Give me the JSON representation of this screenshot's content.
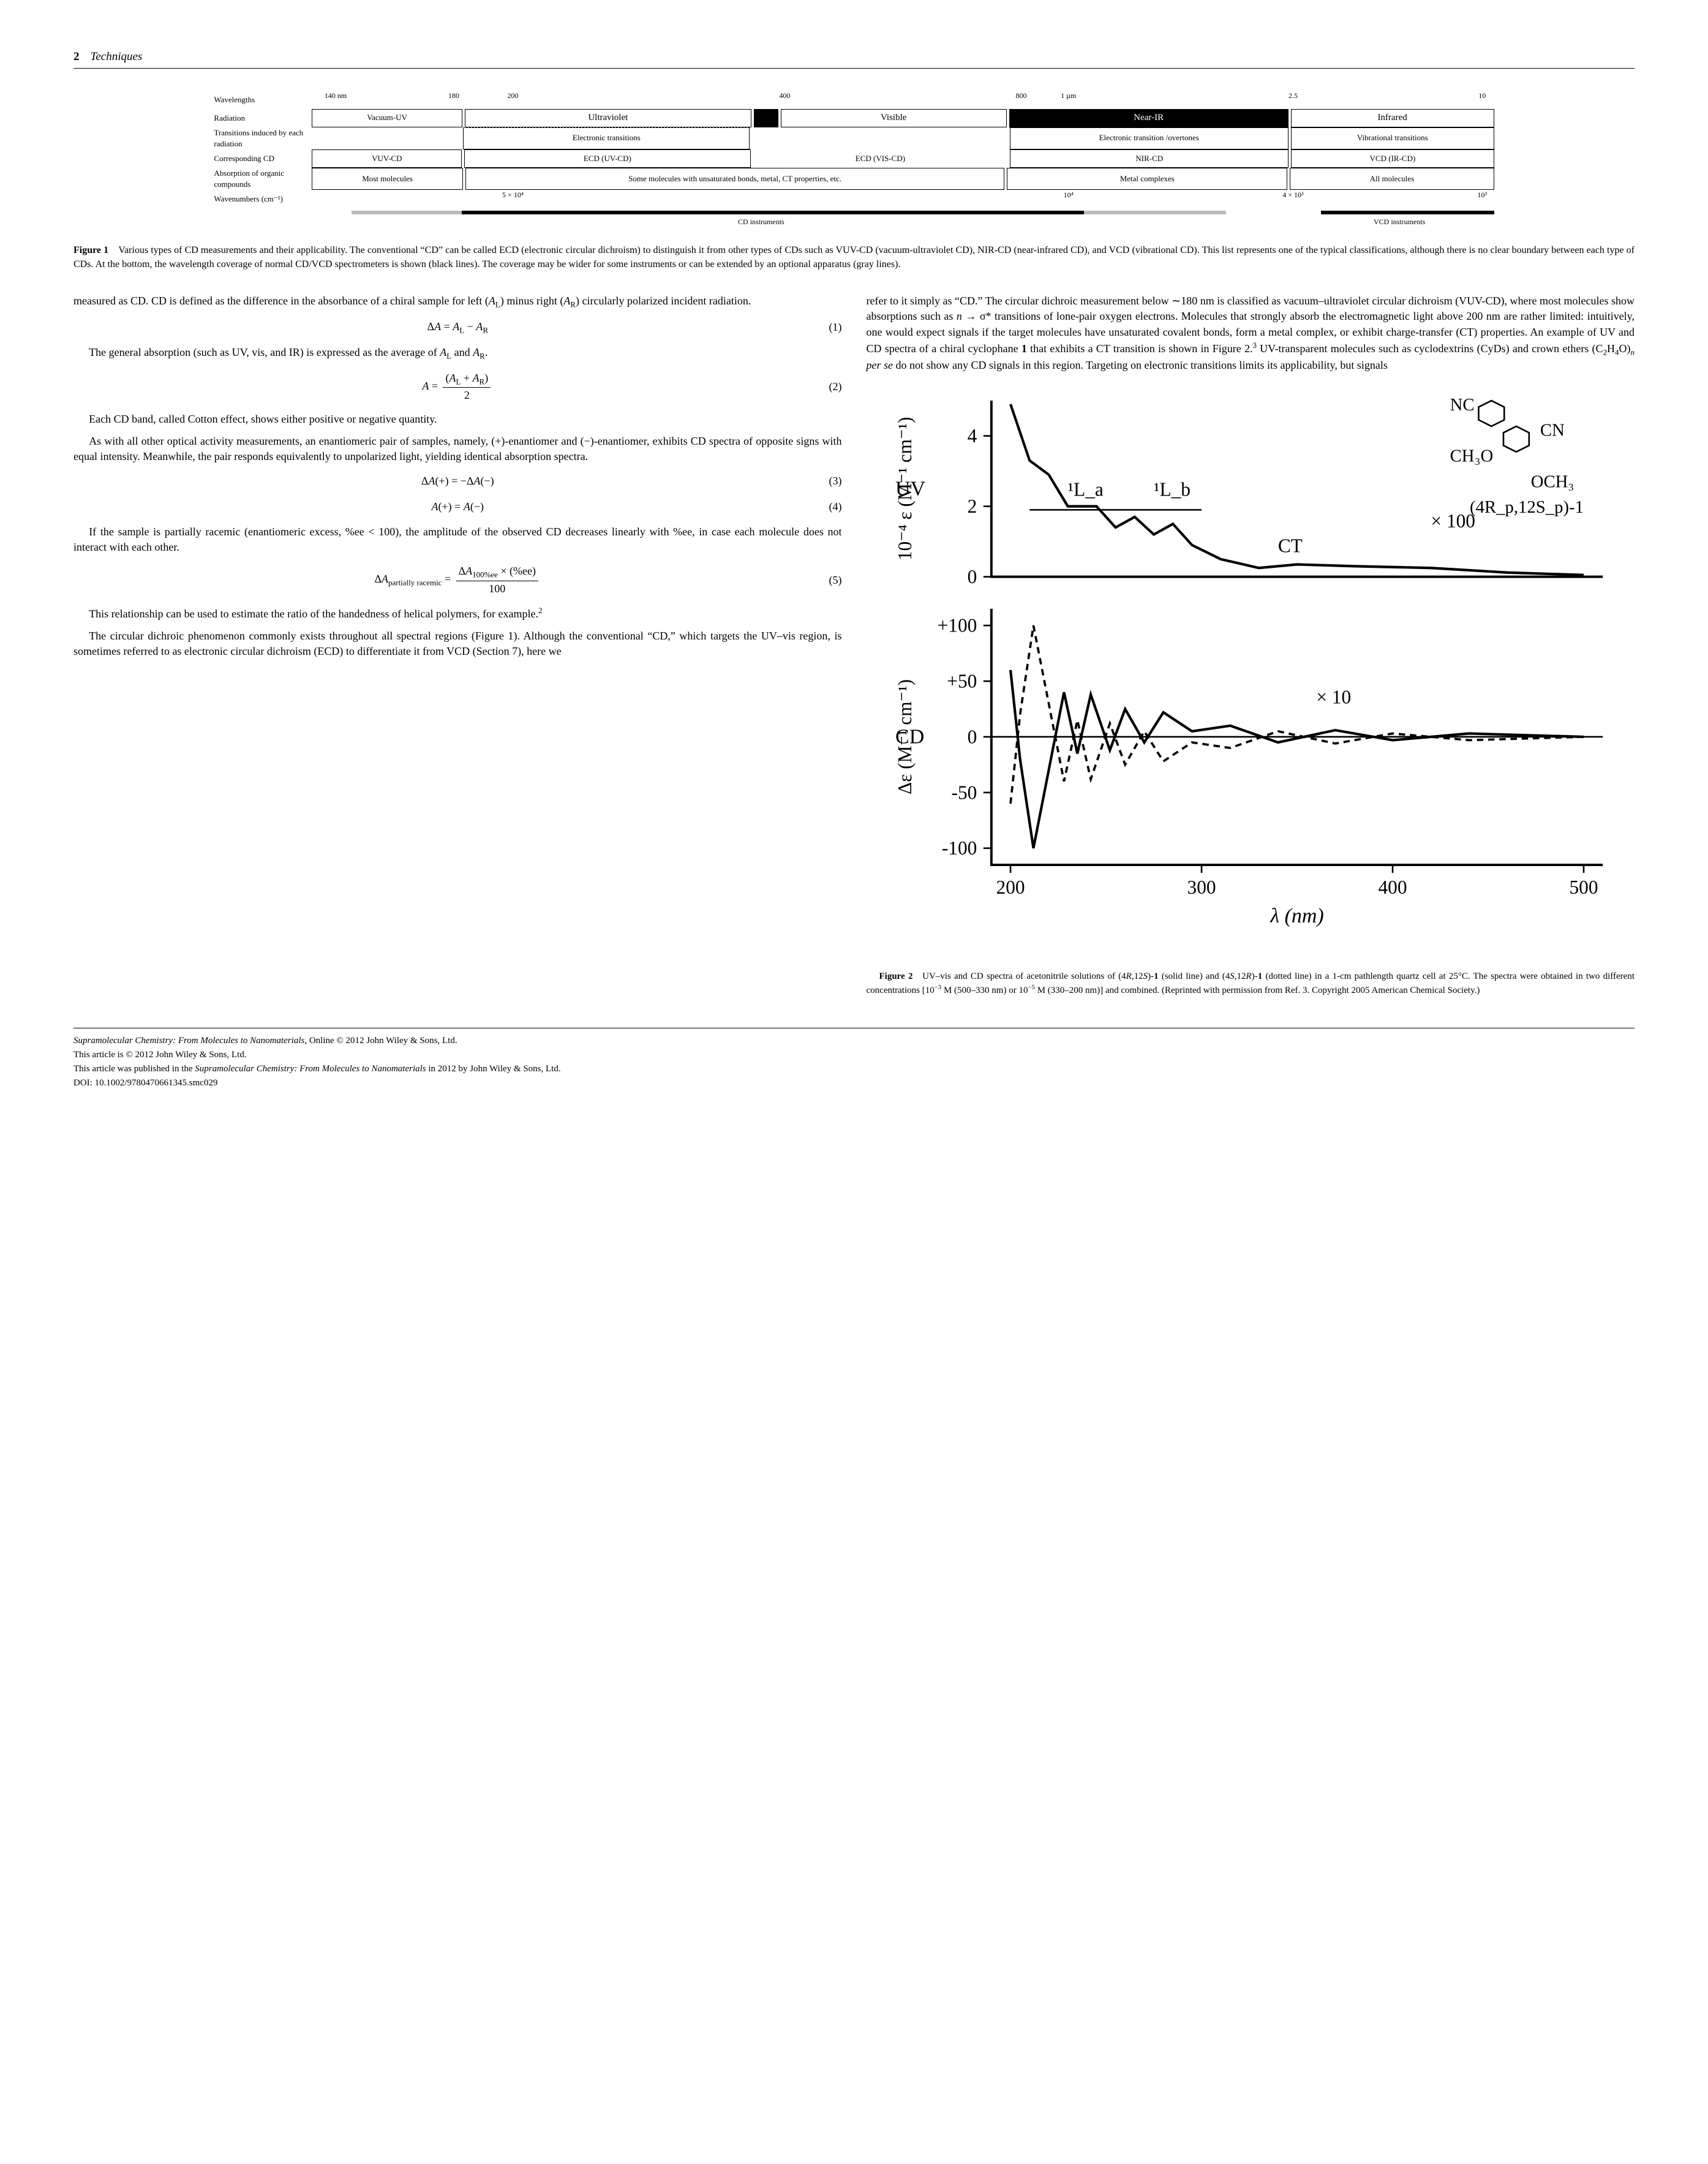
{
  "header": {
    "page_number": "2",
    "section_title": "Techniques"
  },
  "figure1": {
    "row_labels": {
      "wavelengths": "Wavelengths",
      "radiation": "Radiation",
      "transitions": "Transitions induced by each radiation",
      "corresponding": "Corresponding CD",
      "absorption": "Absorption of organic compounds",
      "wavenumbers": "Wavenumbers (cm⁻¹)"
    },
    "wavelength_ticks": [
      "140 nm",
      "180",
      "200",
      "400",
      "800",
      "1 µm",
      "2.5",
      "10"
    ],
    "radiation": [
      "Vacuum-UV",
      "Ultraviolet",
      "Visible",
      "Near-IR",
      "Infrared"
    ],
    "transitions": [
      "",
      "Electronic transitions",
      "",
      "Electronic transition /overtones",
      "Vibrational transitions"
    ],
    "corresponding": [
      "VUV-CD",
      "ECD (UV-CD)",
      "ECD (VIS-CD)",
      "NIR-CD",
      "VCD (IR-CD)"
    ],
    "absorption": [
      "Most molecules",
      "Some molecules with unsaturated bonds, metal, CT properties, etc.",
      "Metal complexes",
      "All molecules"
    ],
    "wavenumber_ticks": [
      "5 × 10⁴",
      "10⁴",
      "4 × 10³",
      "10³"
    ],
    "instruments": {
      "cd": "CD instruments",
      "vcd": "VCD instruments"
    },
    "colors": {
      "border": "#000000",
      "dark_bg": "#000000",
      "dark_fg": "#ffffff",
      "gray_bar": "#bbbbbb"
    },
    "column_flex": {
      "vuv": 0.95,
      "uv": 1.85,
      "vis": 1.65,
      "nir": 1.8,
      "ir": 1.3
    }
  },
  "figure1_caption": {
    "label": "Figure 1",
    "text": "Various types of CD measurements and their applicability. The conventional “CD” can be called ECD (electronic circular dichroism) to distinguish it from other types of CDs such as VUV-CD (vacuum-ultraviolet CD), NIR-CD (near-infrared CD), and VCD (vibrational CD). This list represents one of the typical classifications, although there is no clear boundary between each type of CDs. At the bottom, the wavelength coverage of normal CD/VCD spectrometers is shown (black lines). The coverage may be wider for some instruments or can be extended by an optional apparatus (gray lines)."
  },
  "body": {
    "left": {
      "p1": "measured as CD. CD is defined as the difference in the absorbance of a chiral sample for left (A_L) minus right (A_R) circularly polarized incident radiation.",
      "eq1": {
        "math": "ΔA = A_L − A_R",
        "num": "(1)"
      },
      "p2": "The general absorption (such as UV, vis, and IR) is expressed as the average of A_L and A_R.",
      "eq2": {
        "lhs": "A =",
        "num_top": "(A_L + A_R)",
        "den": "2",
        "num": "(2)"
      },
      "p3": "Each CD band, called Cotton effect, shows either positive or negative quantity.",
      "p4": "As with all other optical activity measurements, an enantiomeric pair of samples, namely, (+)-enantiomer and (−)-enantiomer, exhibits CD spectra of opposite signs with equal intensity. Meanwhile, the pair responds equivalently to unpolarized light, yielding identical absorption spectra.",
      "eq3": {
        "math": "ΔA(+) = −ΔA(−)",
        "num": "(3)"
      },
      "eq4": {
        "math": "A(+) = A(−)",
        "num": "(4)"
      },
      "p5": "If the sample is partially racemic (enantiomeric excess, %ee < 100), the amplitude of the observed CD decreases linearly with %ee, in case each molecule does not interact with each other.",
      "eq5": {
        "lhs": "ΔA_partially racemic =",
        "num_top": "ΔA_100%ee × (%ee)",
        "den": "100",
        "num": "(5)"
      },
      "p6": "This relationship can be used to estimate the ratio of the handedness of helical polymers, for example.²",
      "p7": "The circular dichroic phenomenon commonly exists throughout all spectral regions (Figure 1). Although the conventional “CD,” which targets the UV–vis region, is sometimes referred to as electronic circular dichroism (ECD) to differentiate it from VCD (Section 7), here we"
    },
    "right": {
      "p1": "refer to it simply as “CD.” The circular dichroic measurement below ∼180 nm is classified as vacuum–ultraviolet circular dichroism (VUV-CD), where most molecules show absorptions such as n → σ* transitions of lone-pair oxygen electrons. Molecules that strongly absorb the electromagnetic light above 200 nm are rather limited: intuitively, one would expect signals if the target molecules have unsaturated covalent bonds, form a metal complex, or exhibit charge-transfer (CT) properties. An example of UV and CD spectra of a chiral cyclophane 1 that exhibits a CT transition is shown in Figure 2.³ UV-transparent molecules such as cyclodextrins (CyDs) and crown ethers (C₂H₄O)ₙ per se do not show any CD signals in this region. Targeting on electronic transitions limits its applicability, but signals"
    }
  },
  "figure2": {
    "uv": {
      "ylabel": "10⁻⁴ ε (M⁻¹ cm⁻¹)",
      "yticks": [
        0,
        2,
        4
      ],
      "ylim": [
        0,
        5
      ],
      "annotations": {
        "La": "¹L_a",
        "Lb": "¹L_b",
        "CT": "CT",
        "x100": "× 100"
      },
      "series_solid": [
        [
          200,
          4.9
        ],
        [
          210,
          3.3
        ],
        [
          220,
          2.9
        ],
        [
          230,
          2.0
        ],
        [
          245,
          2.0
        ],
        [
          255,
          1.4
        ],
        [
          265,
          1.7
        ],
        [
          275,
          1.2
        ],
        [
          285,
          1.5
        ],
        [
          295,
          0.9
        ],
        [
          310,
          0.5
        ],
        [
          330,
          0.25
        ],
        [
          350,
          0.35
        ],
        [
          380,
          0.3
        ],
        [
          420,
          0.25
        ],
        [
          460,
          0.12
        ],
        [
          500,
          0.05
        ]
      ],
      "axis_label": "UV",
      "molecule_labels": {
        "nc": "NC",
        "cn": "CN",
        "ch3o": "CH₃O",
        "och3": "OCH₃",
        "name": "(4R_p,12S_p)-1"
      }
    },
    "cd": {
      "ylabel": "Δε (M⁻¹ cm⁻¹)",
      "yticks": [
        -100,
        -50,
        0,
        50,
        100
      ],
      "ylim": [
        -115,
        115
      ],
      "x10": "× 10",
      "series_solid": [
        [
          200,
          60
        ],
        [
          205,
          -20
        ],
        [
          212,
          -100
        ],
        [
          220,
          -30
        ],
        [
          228,
          40
        ],
        [
          235,
          -15
        ],
        [
          242,
          38
        ],
        [
          252,
          -12
        ],
        [
          260,
          25
        ],
        [
          270,
          -5
        ],
        [
          280,
          22
        ],
        [
          295,
          5
        ],
        [
          315,
          10
        ],
        [
          340,
          -5
        ],
        [
          370,
          6
        ],
        [
          400,
          -3
        ],
        [
          440,
          3
        ],
        [
          500,
          0
        ]
      ],
      "series_dashed": [
        [
          200,
          -60
        ],
        [
          205,
          20
        ],
        [
          212,
          100
        ],
        [
          220,
          30
        ],
        [
          228,
          -40
        ],
        [
          235,
          15
        ],
        [
          242,
          -38
        ],
        [
          252,
          12
        ],
        [
          260,
          -25
        ],
        [
          270,
          5
        ],
        [
          280,
          -22
        ],
        [
          295,
          -5
        ],
        [
          315,
          -10
        ],
        [
          340,
          5
        ],
        [
          370,
          -6
        ],
        [
          400,
          3
        ],
        [
          440,
          -3
        ],
        [
          500,
          0
        ]
      ],
      "axis_label": "CD"
    },
    "xaxis": {
      "label": "λ (nm)",
      "ticks": [
        200,
        300,
        400,
        500
      ],
      "xlim": [
        190,
        510
      ]
    },
    "colors": {
      "line": "#000000",
      "bg": "#ffffff"
    }
  },
  "figure2_caption": {
    "label": "Figure 2",
    "text": "UV–vis and CD spectra of acetonitrile solutions of (4R,12S)-1 (solid line) and (4S,12R)-1 (dotted line) in a 1-cm pathlength quartz cell at 25°C. The spectra were obtained in two different concentrations [10⁻³ M (500–330 nm) or 10⁻⁵ M (330–200 nm)] and combined. (Reprinted with permission from Ref. 3. Copyright 2005 American Chemical Society.)"
  },
  "footer": {
    "l1a": "Supramolecular Chemistry: From Molecules to Nanomaterials",
    "l1b": ", Online © 2012 John Wiley & Sons, Ltd.",
    "l2": "This article is © 2012 John Wiley & Sons, Ltd.",
    "l3a": "This article was published in the ",
    "l3b": "Supramolecular Chemistry: From Molecules to Nanomaterials",
    "l3c": " in 2012 by John Wiley & Sons, Ltd.",
    "l4": "DOI: 10.1002/9780470661345.smc029"
  }
}
